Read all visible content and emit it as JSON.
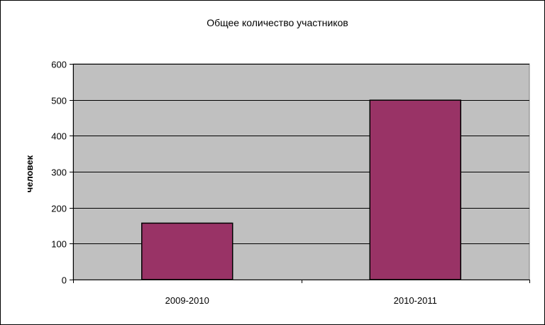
{
  "chart_data": {
    "type": "bar",
    "title": "Общее количество участников",
    "xlabel": "",
    "ylabel": "человек",
    "categories": [
      "2009-2010",
      "2010-2011"
    ],
    "values": [
      157,
      499
    ],
    "ylim": [
      0,
      600
    ],
    "yticks": [
      0,
      100,
      200,
      300,
      400,
      500,
      600
    ],
    "grid": true,
    "legend": "none",
    "colors": {
      "bar": "#993366",
      "plot_background": "#C0C0C0",
      "gridline": "#000000"
    }
  }
}
